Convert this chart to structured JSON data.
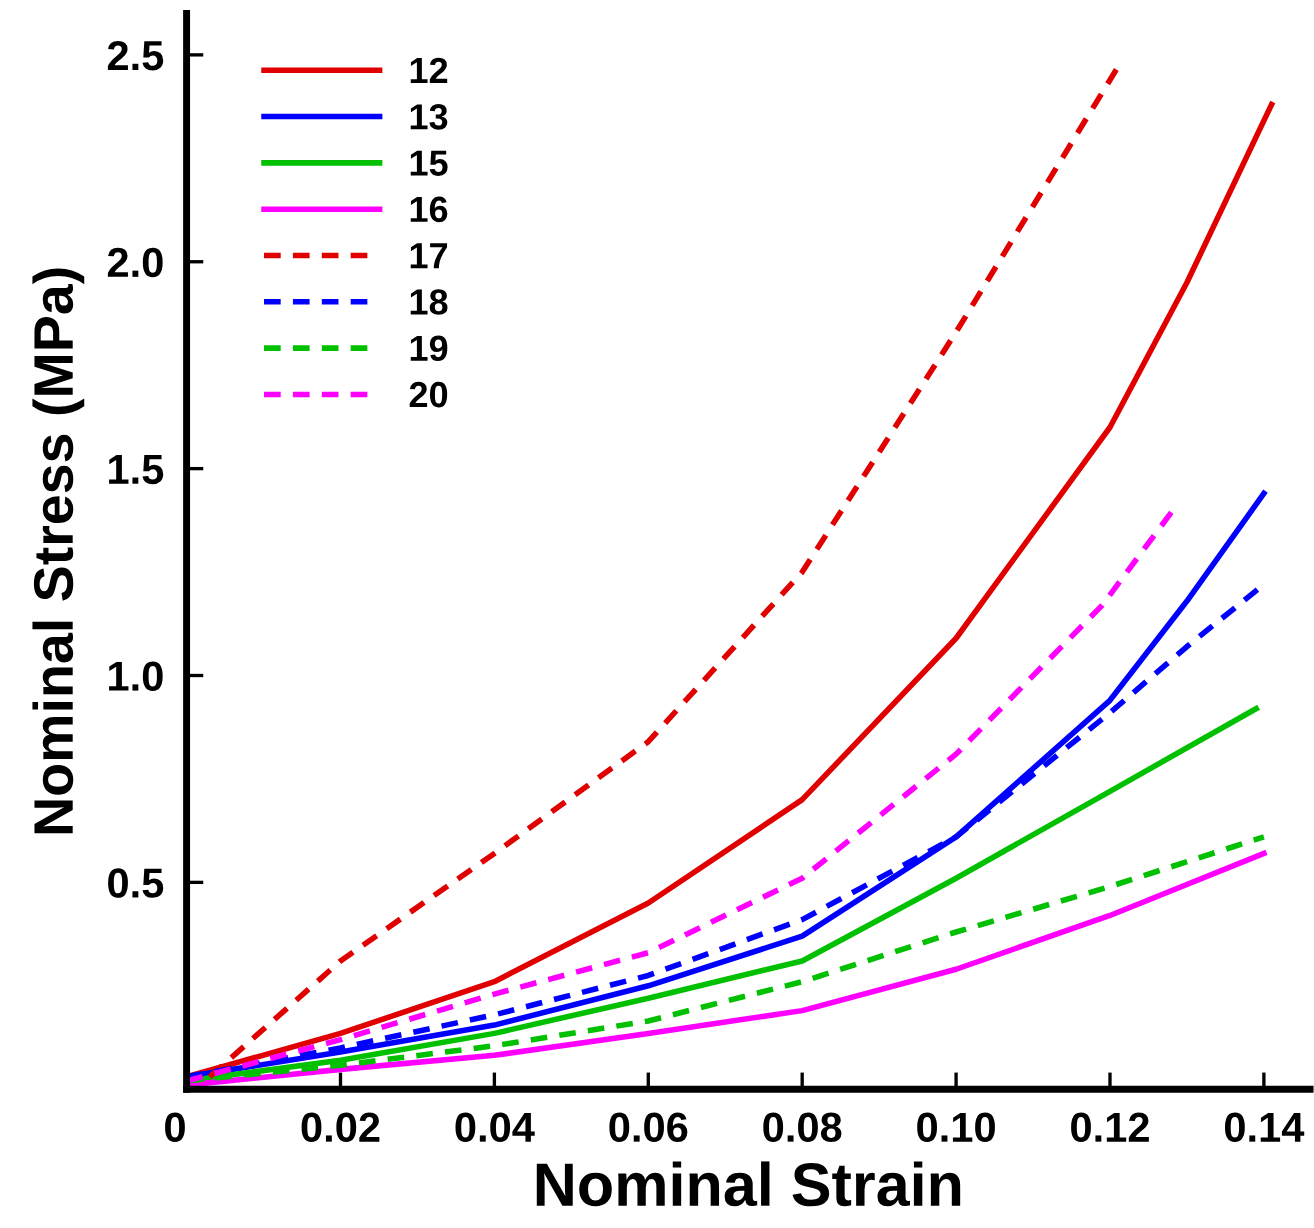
{
  "chart_data": {
    "type": "line",
    "xlabel": "Nominal Strain",
    "ylabel": "Nominal Stress (MPa)",
    "xlim": [
      0,
      0.146
    ],
    "ylim": [
      0,
      2.6
    ],
    "xticks": [
      {
        "value": 0,
        "label": "0"
      },
      0.02,
      0.04,
      0.06,
      0.08,
      {
        "value": 0.1,
        "label": "0.10"
      },
      0.12,
      0.14
    ],
    "yticks": [
      {
        "value": 0.5,
        "label": "0.5"
      },
      {
        "value": 1.0,
        "label": "1.0"
      },
      {
        "value": 1.5,
        "label": "1.5"
      },
      {
        "value": 2.0,
        "label": "2.0"
      },
      {
        "value": 2.5,
        "label": "2.5"
      }
    ],
    "grid": false,
    "legend": "top left",
    "marker": "none",
    "series": [
      {
        "name": "12",
        "color": "#e00000",
        "line_style": "solid",
        "x": [
          0,
          0.02,
          0.04,
          0.06,
          0.08,
          0.1,
          0.12,
          0.13,
          0.141
        ],
        "values": [
          0.03,
          0.135,
          0.26,
          0.45,
          0.7,
          1.09,
          1.6,
          1.95,
          2.38
        ]
      },
      {
        "name": "13",
        "color": "#0000ff",
        "line_style": "solid",
        "x": [
          0,
          0.02,
          0.04,
          0.06,
          0.08,
          0.1,
          0.12,
          0.13,
          0.14
        ],
        "values": [
          0.03,
          0.09,
          0.155,
          0.25,
          0.37,
          0.61,
          0.94,
          1.18,
          1.44
        ]
      },
      {
        "name": "15",
        "color": "#00c000",
        "line_style": "solid",
        "x": [
          0,
          0.02,
          0.04,
          0.06,
          0.08,
          0.1,
          0.12,
          0.139
        ],
        "values": [
          0.02,
          0.07,
          0.135,
          0.22,
          0.31,
          0.51,
          0.72,
          0.92
        ]
      },
      {
        "name": "16",
        "color": "#ff00ff",
        "line_style": "solid",
        "x": [
          0,
          0.02,
          0.04,
          0.06,
          0.08,
          0.1,
          0.12,
          0.14
        ],
        "values": [
          0.01,
          0.048,
          0.082,
          0.135,
          0.19,
          0.29,
          0.42,
          0.57
        ]
      },
      {
        "name": "17",
        "color": "#e00000",
        "line_style": "dashed",
        "x": [
          0.003,
          0.02,
          0.04,
          0.06,
          0.08,
          0.1,
          0.121
        ],
        "values": [
          0.03,
          0.31,
          0.57,
          0.84,
          1.25,
          1.83,
          2.47
        ]
      },
      {
        "name": "18",
        "color": "#0000ff",
        "line_style": "dashed",
        "x": [
          0,
          0.02,
          0.04,
          0.06,
          0.08,
          0.1,
          0.12,
          0.13,
          0.14
        ],
        "values": [
          0.03,
          0.1,
          0.18,
          0.275,
          0.41,
          0.61,
          0.91,
          1.07,
          1.22
        ]
      },
      {
        "name": "19",
        "color": "#00c000",
        "line_style": "dashed",
        "x": [
          0,
          0.02,
          0.04,
          0.06,
          0.08,
          0.1,
          0.12,
          0.14
        ],
        "values": [
          0.02,
          0.058,
          0.105,
          0.165,
          0.26,
          0.38,
          0.49,
          0.61
        ]
      },
      {
        "name": "20",
        "color": "#ff00ff",
        "line_style": "dashed",
        "x": [
          0,
          0.02,
          0.04,
          0.06,
          0.08,
          0.1,
          0.119,
          0.1286
        ],
        "values": [
          0.02,
          0.12,
          0.23,
          0.33,
          0.51,
          0.81,
          1.17,
          1.41
        ]
      }
    ]
  }
}
